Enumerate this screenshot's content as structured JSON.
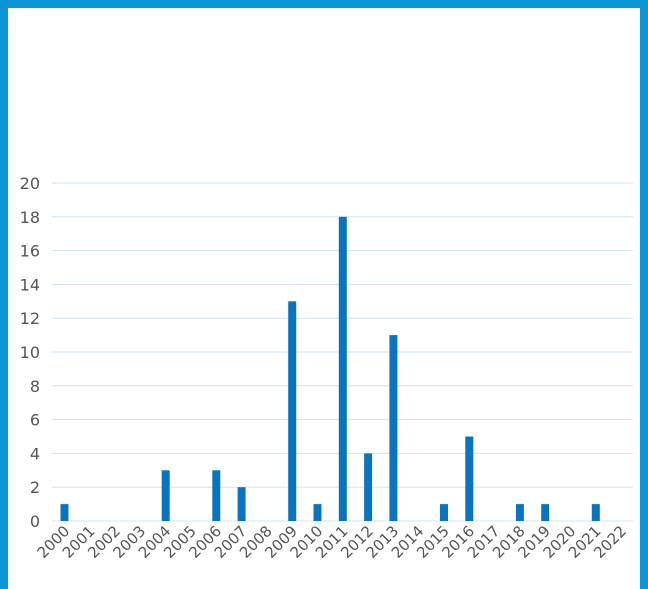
{
  "colors": {
    "frame": "#0a94d6",
    "bar": "#0a74c0",
    "grid": "#cfe6f4"
  },
  "chart_data": {
    "type": "bar",
    "title": "",
    "xlabel": "",
    "ylabel": "",
    "ylim": [
      0,
      20
    ],
    "yticks": [
      0,
      2,
      4,
      6,
      8,
      10,
      12,
      14,
      16,
      18,
      20
    ],
    "grid": true,
    "categories": [
      "2000",
      "2001",
      "2002",
      "2003",
      "2004",
      "2005",
      "2006",
      "2007",
      "2008",
      "2009",
      "2010",
      "2011",
      "2012",
      "2013",
      "2014",
      "2015",
      "2016",
      "2017",
      "2018",
      "2019",
      "2020",
      "2021",
      "2022"
    ],
    "values": [
      1,
      0,
      0,
      0,
      3,
      0,
      3,
      2,
      0,
      13,
      1,
      18,
      4,
      11,
      0,
      1,
      5,
      0,
      1,
      1,
      0,
      1,
      0
    ]
  }
}
